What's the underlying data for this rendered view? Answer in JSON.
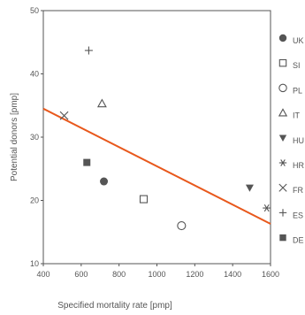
{
  "chart_data": {
    "type": "scatter",
    "title": "",
    "xlabel": "Specified mortality rate [pmp]",
    "ylabel": "Potential donors [pmp]",
    "xlim": [
      400,
      1600
    ],
    "ylim": [
      10,
      50
    ],
    "xticks": [
      "400",
      "600",
      "800",
      "1000",
      "1200",
      "1400",
      "1600"
    ],
    "yticks": [
      "10",
      "20",
      "30",
      "40",
      "50"
    ],
    "grid": false,
    "legend_position": "right",
    "series": [
      {
        "name": "UK",
        "marker": "filled-circle",
        "x": 720,
        "y": 23
      },
      {
        "name": "SI",
        "marker": "open-square",
        "x": 930,
        "y": 20.2
      },
      {
        "name": "PL",
        "marker": "open-circle",
        "x": 1130,
        "y": 16
      },
      {
        "name": "IT",
        "marker": "open-triangle",
        "x": 710,
        "y": 35.3
      },
      {
        "name": "HU",
        "marker": "filled-triangle-down",
        "x": 1490,
        "y": 22
      },
      {
        "name": "HR",
        "marker": "asterisk",
        "x": 1580,
        "y": 18.8
      },
      {
        "name": "FR",
        "marker": "x-cross",
        "x": 510,
        "y": 33.4
      },
      {
        "name": "ES",
        "marker": "plus",
        "x": 640,
        "y": 43.7
      },
      {
        "name": "DE",
        "marker": "filled-square",
        "x": 630,
        "y": 26
      }
    ],
    "trendline": {
      "x": [
        400,
        1600
      ],
      "y": [
        34.5,
        16.3
      ],
      "color": "#e8581c"
    },
    "colors": {
      "marker": "#555555",
      "axis": "#555555",
      "trend": "#e8581c"
    }
  }
}
